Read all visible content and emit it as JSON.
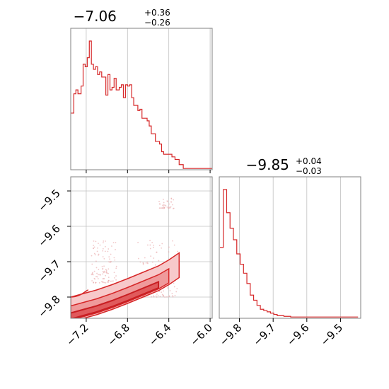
{
  "chart_data": [
    {
      "type": "histogram",
      "panel": "marginal-x",
      "title": "−7.06",
      "title_sup": "+0.36",
      "title_sub": "−0.26",
      "color": "#d62728",
      "xlim": [
        -7.35,
        -5.98
      ],
      "bin_edges": [
        -7.35,
        -7.32,
        -7.3,
        -7.28,
        -7.25,
        -7.23,
        -7.21,
        -7.19,
        -7.17,
        -7.15,
        -7.13,
        -7.11,
        -7.09,
        -7.07,
        -7.05,
        -7.03,
        -7.01,
        -6.99,
        -6.97,
        -6.95,
        -6.93,
        -6.91,
        -6.88,
        -6.86,
        -6.84,
        -6.82,
        -6.8,
        -6.78,
        -6.76,
        -6.74,
        -6.72,
        -6.7,
        -6.68,
        -6.66,
        -6.64,
        -6.61,
        -6.59,
        -6.57,
        -6.55,
        -6.53,
        -6.51,
        -6.49,
        -6.47,
        -6.45,
        -6.43,
        -6.41,
        -6.39,
        -6.37,
        -6.34,
        -6.32,
        -6.3,
        -6.28,
        -6.26,
        -6.24,
        -6.22,
        -6.2,
        -6.18,
        -6.16,
        -6.14,
        -6.12,
        -6.1,
        -6.08,
        -6.06,
        -6.04,
        -6.02,
        -6.0,
        -5.98
      ],
      "counts": [
        0.44,
        0.59,
        0.62,
        0.59,
        0.65,
        0.82,
        0.8,
        0.87,
        1.0,
        0.82,
        0.78,
        0.8,
        0.74,
        0.76,
        0.72,
        0.72,
        0.58,
        0.74,
        0.62,
        0.64,
        0.71,
        0.62,
        0.64,
        0.66,
        0.56,
        0.66,
        0.65,
        0.66,
        0.56,
        0.5,
        0.5,
        0.46,
        0.47,
        0.4,
        0.4,
        0.38,
        0.34,
        0.28,
        0.28,
        0.22,
        0.22,
        0.2,
        0.14,
        0.12,
        0.12,
        0.12,
        0.12,
        0.1,
        0.08,
        0.08,
        0.04,
        0.04,
        0.01,
        0.01,
        0.01,
        0.01,
        0.01,
        0.01,
        0.01,
        0.01,
        0.01,
        0.01,
        0.01,
        0.01,
        0.01,
        0.01
      ]
    },
    {
      "type": "scatter-contour",
      "panel": "joint",
      "color": "#d62728",
      "xlim": [
        -7.35,
        -5.98
      ],
      "ylim": [
        -9.86,
        -9.46
      ],
      "x_ticks": [
        -7.2,
        -6.8,
        -6.4,
        -6.0
      ],
      "x_tick_labels": [
        "−7.2",
        "−6.8",
        "−6.4",
        "−6.0"
      ],
      "y_ticks": [
        -9.5,
        -9.6,
        -9.7,
        -9.8
      ],
      "y_tick_labels": [
        "−9.5",
        "−9.6",
        "−9.7",
        "−9.8"
      ],
      "density_ridge": [
        [
          -7.35,
          -9.86
        ],
        [
          -7.25,
          -9.852
        ],
        [
          -7.1,
          -9.84
        ],
        [
          -6.95,
          -9.825
        ],
        [
          -6.8,
          -9.808
        ],
        [
          -6.65,
          -9.79
        ],
        [
          -6.5,
          -9.772
        ],
        [
          -6.4,
          -9.755
        ],
        [
          -6.3,
          -9.735
        ]
      ],
      "outlier_clusters": [
        {
          "x": [
            -7.15,
            -6.9
          ],
          "y": [
            -9.76,
            -9.64
          ],
          "density": 0.15
        },
        {
          "x": [
            -6.7,
            -6.3
          ],
          "y": [
            -9.8,
            -9.64
          ],
          "density": 0.2
        },
        {
          "x": [
            -6.5,
            -6.35
          ],
          "y": [
            -9.55,
            -9.52
          ],
          "density": 0.05
        }
      ]
    },
    {
      "type": "histogram",
      "panel": "marginal-y",
      "title": "−9.85",
      "title_sup": "+0.04",
      "title_sub": "−0.03",
      "color": "#d62728",
      "xlim": [
        -9.86,
        -9.44
      ],
      "x_ticks": [
        -9.8,
        -9.7,
        -9.6,
        -9.5
      ],
      "x_tick_labels": [
        "−9.8",
        "−9.7",
        "−9.6",
        "−9.5"
      ],
      "bin_edges": [
        -9.858,
        -9.848,
        -9.838,
        -9.828,
        -9.818,
        -9.808,
        -9.798,
        -9.788,
        -9.778,
        -9.768,
        -9.758,
        -9.748,
        -9.738,
        -9.728,
        -9.718,
        -9.708,
        -9.698,
        -9.688,
        -9.678,
        -9.668,
        -9.658,
        -9.648,
        -9.638,
        -9.628,
        -9.618,
        -9.608,
        -9.598,
        -9.588,
        -9.578,
        -9.568,
        -9.558,
        -9.548,
        -9.538,
        -9.528,
        -9.518,
        -9.508,
        -9.498,
        -9.488,
        -9.478,
        -9.468,
        -9.458,
        -9.448
      ],
      "counts": [
        0.55,
        1.0,
        0.82,
        0.7,
        0.61,
        0.5,
        0.42,
        0.35,
        0.27,
        0.18,
        0.14,
        0.1,
        0.07,
        0.06,
        0.05,
        0.04,
        0.03,
        0.02,
        0.02,
        0.015,
        0.015,
        0.01,
        0.01,
        0.01,
        0.01,
        0.01,
        0.01,
        0.01,
        0.01,
        0.01,
        0.01,
        0.01,
        0.01,
        0.01,
        0.01,
        0.01,
        0.01,
        0.01,
        0.01,
        0.01,
        0.01
      ]
    }
  ]
}
